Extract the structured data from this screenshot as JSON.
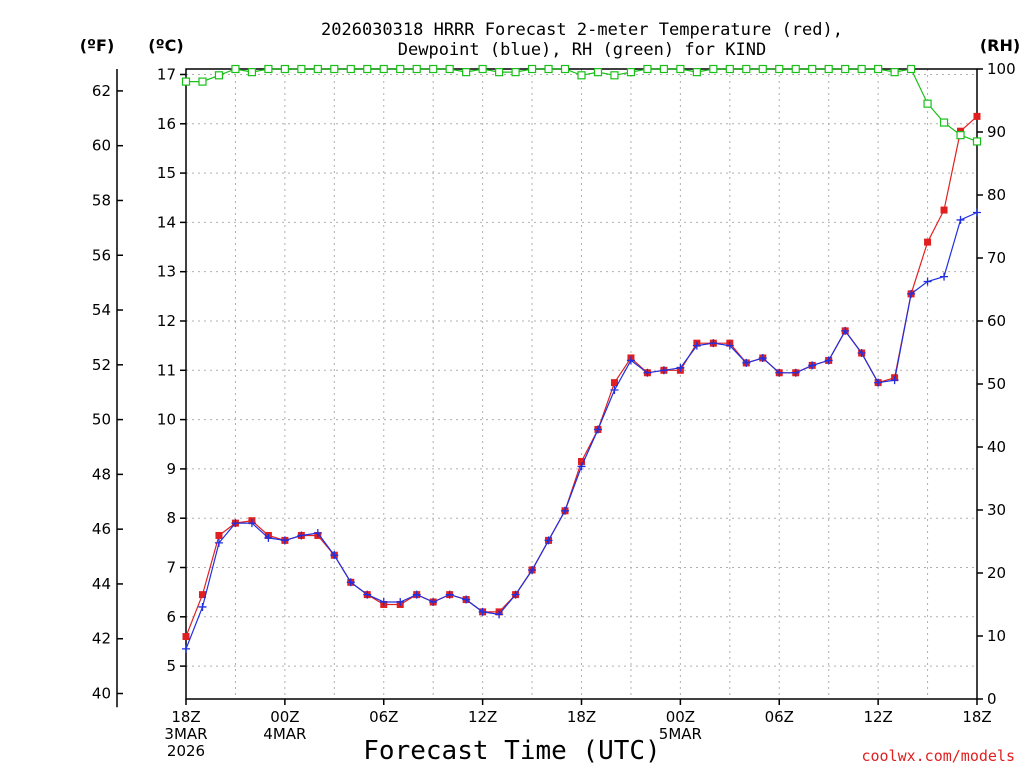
{
  "chart_data": {
    "type": "line",
    "title_line1": "2026030318 HRRR Forecast 2-meter Temperature (red),",
    "title_line2": "Dewpoint (blue), RH (green) for KIND",
    "xlabel": "Forecast Time (UTC)",
    "credit": "coolwx.com/models",
    "units": {
      "fahrenheit": "(ºF)",
      "celsius": "(ºC)",
      "rh": "(RH)"
    },
    "hours_range": [
      0,
      48
    ],
    "celsius_range": [
      4.333,
      17.111
    ],
    "rh_range": [
      0,
      100
    ],
    "celsius_ticks": [
      5,
      6,
      7,
      8,
      9,
      10,
      11,
      12,
      13,
      14,
      15,
      16,
      17
    ],
    "fahrenheit_ticks": [
      40,
      42,
      44,
      46,
      48,
      50,
      52,
      54,
      56,
      58,
      60,
      62
    ],
    "rh_ticks": [
      0,
      10,
      20,
      30,
      40,
      50,
      60,
      70,
      80,
      90,
      100
    ],
    "x_ticks": [
      {
        "hour": 0,
        "lines": [
          "18Z",
          "3MAR",
          "2026"
        ]
      },
      {
        "hour": 6,
        "lines": [
          "00Z",
          "4MAR"
        ]
      },
      {
        "hour": 12,
        "lines": [
          "06Z"
        ]
      },
      {
        "hour": 18,
        "lines": [
          "12Z"
        ]
      },
      {
        "hour": 24,
        "lines": [
          "18Z"
        ]
      },
      {
        "hour": 30,
        "lines": [
          "00Z",
          "5MAR"
        ]
      },
      {
        "hour": 36,
        "lines": [
          "06Z"
        ]
      },
      {
        "hour": 42,
        "lines": [
          "12Z"
        ]
      },
      {
        "hour": 48,
        "lines": [
          "18Z"
        ]
      }
    ],
    "series": [
      {
        "name": "Temperature",
        "color": "#e02020",
        "unit": "C",
        "values": [
          5.6,
          6.45,
          7.65,
          7.9,
          7.95,
          7.65,
          7.55,
          7.65,
          7.65,
          7.25,
          6.7,
          6.45,
          6.25,
          6.25,
          6.45,
          6.3,
          6.45,
          6.35,
          6.1,
          6.1,
          6.45,
          6.95,
          7.55,
          8.15,
          9.15,
          9.8,
          10.75,
          11.25,
          10.95,
          11.0,
          11.0,
          11.55,
          11.55,
          11.55,
          11.15,
          11.25,
          10.95,
          10.95,
          11.1,
          11.2,
          11.8,
          11.35,
          10.75,
          10.85,
          12.55,
          13.6,
          14.25,
          15.85,
          16.15
        ]
      },
      {
        "name": "Dewpoint",
        "color": "#2030e0",
        "unit": "C",
        "values": [
          5.35,
          6.2,
          7.5,
          7.9,
          7.9,
          7.6,
          7.55,
          7.65,
          7.7,
          7.25,
          6.7,
          6.45,
          6.3,
          6.3,
          6.45,
          6.3,
          6.45,
          6.35,
          6.1,
          6.05,
          6.45,
          6.95,
          7.55,
          8.15,
          9.05,
          9.8,
          10.6,
          11.2,
          10.95,
          11.0,
          11.05,
          11.5,
          11.55,
          11.5,
          11.15,
          11.25,
          10.95,
          10.95,
          11.1,
          11.2,
          11.8,
          11.35,
          10.75,
          10.8,
          12.55,
          12.8,
          12.9,
          14.05,
          14.2
        ]
      },
      {
        "name": "RH",
        "color": "#18c018",
        "unit": "%",
        "values": [
          98,
          98,
          99,
          100,
          99.5,
          100,
          100,
          100,
          100,
          100,
          100,
          100,
          100,
          100,
          100,
          100,
          100,
          99.5,
          100,
          99.5,
          99.5,
          100,
          100,
          100,
          99,
          99.5,
          99,
          99.5,
          100,
          100,
          100,
          99.5,
          100,
          100,
          100,
          100,
          100,
          100,
          100,
          100,
          100,
          100,
          100,
          99.5,
          100,
          94.5,
          91.5,
          89.5,
          88.5
        ]
      }
    ]
  }
}
